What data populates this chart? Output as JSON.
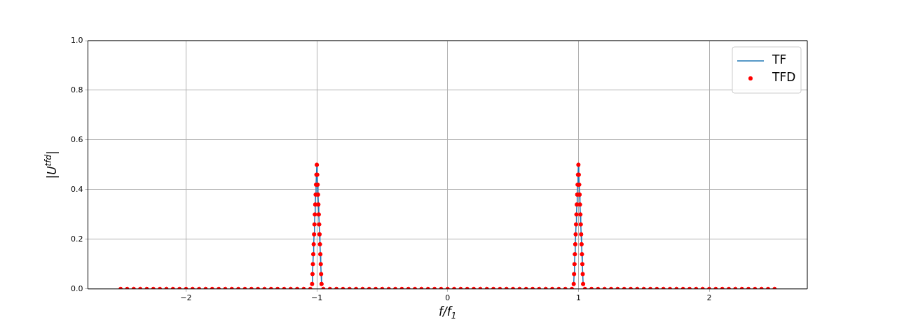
{
  "chart_data": {
    "type": "line",
    "xlabel": "f/f$_{1}$",
    "ylabel": "|U$^{tfd}$|",
    "x": [
      -2.5,
      -2.45,
      -2.4,
      -2.35,
      -2.3,
      -2.25,
      -2.2,
      -2.15,
      -2.1,
      -2.05,
      -2,
      -1.95,
      -1.9,
      -1.85,
      -1.8,
      -1.75,
      -1.7,
      -1.65,
      -1.6,
      -1.55,
      -1.5,
      -1.45,
      -1.4,
      -1.35,
      -1.3,
      -1.25,
      -1.2,
      -1.15,
      -1.1,
      -1.05,
      -1.036,
      -1.033,
      -1.03,
      -1.027,
      -1.024,
      -1.021,
      -1.018,
      -1.015,
      -1.012,
      -1.009,
      -1.006,
      -1.003,
      -1,
      -0.997,
      -0.994,
      -0.991,
      -0.988,
      -0.985,
      -0.982,
      -0.979,
      -0.976,
      -0.973,
      -0.97,
      -0.967,
      -0.964,
      -0.95,
      -0.9,
      -0.85,
      -0.8,
      -0.75,
      -0.7,
      -0.65,
      -0.6,
      -0.55,
      -0.5,
      -0.45,
      -0.4,
      -0.35,
      -0.3,
      -0.25,
      -0.2,
      -0.15,
      -0.1,
      -0.05,
      0,
      0.05,
      0.1,
      0.15,
      0.2,
      0.25,
      0.3,
      0.35,
      0.4,
      0.45,
      0.5,
      0.55,
      0.6,
      0.65,
      0.7,
      0.75,
      0.8,
      0.85,
      0.9,
      0.95,
      0.964,
      0.967,
      0.97,
      0.973,
      0.976,
      0.979,
      0.982,
      0.985,
      0.988,
      0.991,
      0.994,
      0.997,
      1,
      1.003,
      1.006,
      1.009,
      1.012,
      1.015,
      1.018,
      1.021,
      1.024,
      1.027,
      1.03,
      1.033,
      1.036,
      1.05,
      1.1,
      1.15,
      1.2,
      1.25,
      1.3,
      1.35,
      1.4,
      1.45,
      1.5,
      1.55,
      1.6,
      1.65,
      1.7,
      1.75,
      1.8,
      1.85,
      1.9,
      1.95,
      2,
      2.05,
      2.1,
      2.15,
      2.2,
      2.25,
      2.3,
      2.35,
      2.4,
      2.45,
      2.5
    ],
    "series": [
      {
        "name": "TF",
        "type": "line",
        "color": "#1f77b4",
        "values": [
          null,
          null,
          null,
          null,
          null,
          null,
          null,
          null,
          null,
          null,
          null,
          null,
          null,
          null,
          null,
          null,
          null,
          null,
          null,
          null,
          null,
          null,
          null,
          null,
          null,
          null,
          null,
          null,
          null,
          null,
          0.02,
          0.06,
          0.1,
          0.14,
          0.18,
          0.22,
          0.26,
          0.3,
          0.34,
          0.38,
          0.42,
          0.46,
          0.5,
          0.46,
          0.42,
          0.38,
          0.34,
          0.3,
          0.26,
          0.22,
          0.18,
          0.14,
          0.1,
          0.06,
          0.02,
          null,
          null,
          null,
          null,
          null,
          null,
          null,
          null,
          null,
          null,
          null,
          null,
          null,
          null,
          null,
          null,
          null,
          null,
          null,
          null,
          null,
          null,
          null,
          null,
          null,
          null,
          null,
          null,
          null,
          null,
          null,
          null,
          null,
          null,
          null,
          null,
          null,
          null,
          null,
          0.02,
          0.06,
          0.1,
          0.14,
          0.18,
          0.22,
          0.26,
          0.3,
          0.34,
          0.38,
          0.42,
          0.46,
          0.5,
          0.46,
          0.42,
          0.38,
          0.34,
          0.3,
          0.26,
          0.22,
          0.18,
          0.14,
          0.1,
          0.06,
          0.02,
          null,
          null,
          null,
          null,
          null,
          null,
          null,
          null,
          null,
          null,
          null,
          null,
          null,
          null,
          null,
          null,
          null,
          null,
          null,
          null,
          null,
          null,
          null,
          null,
          null,
          null,
          null,
          null,
          null,
          null
        ]
      },
      {
        "name": "TFD",
        "type": "scatter",
        "color": "#ff0000",
        "marker": "circle",
        "values": [
          0,
          0,
          0,
          0,
          0,
          0,
          0,
          0,
          0,
          0,
          0,
          0,
          0,
          0,
          0,
          0,
          0,
          0,
          0,
          0,
          0,
          0,
          0,
          0,
          0,
          0,
          0,
          0,
          0,
          0,
          0.02,
          0.06,
          0.1,
          0.14,
          0.18,
          0.22,
          0.26,
          0.3,
          0.34,
          0.38,
          0.42,
          0.46,
          0.5,
          0.46,
          0.42,
          0.38,
          0.34,
          0.3,
          0.26,
          0.22,
          0.18,
          0.14,
          0.1,
          0.06,
          0.02,
          0,
          0,
          0,
          0,
          0,
          0,
          0,
          0,
          0,
          0,
          0,
          0,
          0,
          0,
          0,
          0,
          0,
          0,
          0,
          0,
          0,
          0,
          0,
          0,
          0,
          0,
          0,
          0,
          0,
          0,
          0,
          0,
          0,
          0,
          0,
          0,
          0,
          0,
          0,
          0.02,
          0.06,
          0.1,
          0.14,
          0.18,
          0.22,
          0.26,
          0.3,
          0.34,
          0.38,
          0.42,
          0.46,
          0.5,
          0.46,
          0.42,
          0.38,
          0.34,
          0.3,
          0.26,
          0.22,
          0.18,
          0.14,
          0.1,
          0.06,
          0.02,
          0,
          0,
          0,
          0,
          0,
          0,
          0,
          0,
          0,
          0,
          0,
          0,
          0,
          0,
          0,
          0,
          0,
          0,
          0,
          0,
          0,
          0,
          0,
          0,
          0,
          0,
          0,
          0,
          0,
          0
        ]
      }
    ],
    "xlim": [
      -2.75,
      2.75
    ],
    "xticks": [
      {
        "value": -2,
        "label": "−2"
      },
      {
        "value": -1,
        "label": "−1"
      },
      0,
      1,
      2
    ],
    "ylim": [
      0,
      1
    ],
    "yticks": [
      {
        "value": 0,
        "label": "0.0"
      },
      0.2,
      0.4,
      0.6,
      0.8,
      {
        "value": 1,
        "label": "1.0"
      }
    ],
    "grid": true,
    "legend": "top right"
  }
}
